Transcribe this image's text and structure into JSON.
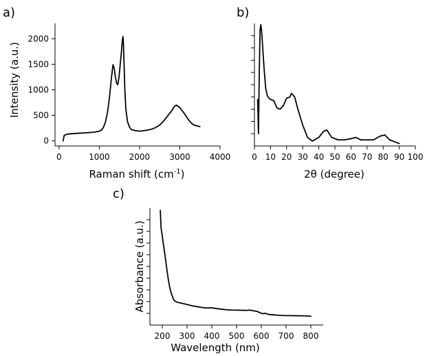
{
  "chart_data": [
    {
      "id": "a",
      "type": "line",
      "panel_label": "a)",
      "xlabel": "Raman shift (cm",
      "xlabel_sup": "-1",
      "xlabel_suffix": ")",
      "ylabel": "Intensity (a.u.)",
      "xlim": [
        -100,
        4000
      ],
      "ylim": [
        -100,
        2300
      ],
      "xticks": [
        0,
        1000,
        2000,
        3000,
        4000
      ],
      "yticks": [
        0,
        500,
        1000,
        1500,
        2000
      ],
      "ytick_labels": true,
      "grid": false,
      "series": [
        {
          "x": [
            100,
            130,
            200,
            300,
            400,
            500,
            600,
            700,
            800,
            900,
            1000,
            1050,
            1100,
            1150,
            1200,
            1250,
            1300,
            1340,
            1370,
            1400,
            1430,
            1460,
            1490,
            1520,
            1550,
            1575,
            1590,
            1600,
            1615,
            1635,
            1660,
            1700,
            1750,
            1800,
            1900,
            2000,
            2100,
            2200,
            2300,
            2400,
            2500,
            2600,
            2700,
            2800,
            2870,
            2920,
            3000,
            3100,
            3200,
            3250,
            3300,
            3350,
            3400,
            3450,
            3500
          ],
          "y": [
            0,
            110,
            130,
            140,
            145,
            150,
            155,
            160,
            165,
            175,
            190,
            210,
            260,
            360,
            540,
            830,
            1220,
            1490,
            1420,
            1250,
            1130,
            1100,
            1250,
            1500,
            1750,
            1980,
            2040,
            1900,
            1500,
            1000,
            620,
            380,
            270,
            220,
            200,
            190,
            200,
            210,
            230,
            260,
            310,
            390,
            490,
            590,
            680,
            700,
            650,
            550,
            430,
            380,
            340,
            310,
            300,
            290,
            280
          ]
        }
      ]
    },
    {
      "id": "b",
      "type": "line",
      "panel_label": "b)",
      "xlabel": "2θ (degree)",
      "ylabel": "",
      "xlim": [
        0,
        100
      ],
      "ylim": [
        0,
        1
      ],
      "xticks": [
        0,
        10,
        20,
        30,
        40,
        50,
        60,
        70,
        80,
        90,
        100
      ],
      "yticks": [
        0.1,
        0.2,
        0.3,
        0.4,
        0.5,
        0.6,
        0.7,
        0.8,
        0.9
      ],
      "ytick_labels": false,
      "grid": false,
      "series": [
        {
          "x": [
            2.0,
            2.5,
            3.0,
            3.5,
            4.0,
            4.5,
            5.0,
            6.0,
            7.0,
            8.0,
            9.0,
            10.0,
            12.0,
            14.0,
            16.0,
            18.0,
            20.0,
            22.0,
            23.0,
            25.0,
            27.0,
            30.0,
            33.0,
            36.0,
            40.0,
            43.0,
            45.0,
            48.0,
            52.0,
            56.0,
            60.0,
            63.0,
            66.0,
            70.0,
            74.0,
            78.0,
            81.0,
            84.0,
            88.0,
            90.0
          ],
          "y": [
            0.38,
            0.1,
            0.6,
            0.95,
            0.99,
            0.93,
            0.83,
            0.63,
            0.47,
            0.41,
            0.39,
            0.38,
            0.37,
            0.31,
            0.3,
            0.33,
            0.39,
            0.4,
            0.43,
            0.4,
            0.3,
            0.17,
            0.07,
            0.04,
            0.07,
            0.12,
            0.13,
            0.07,
            0.05,
            0.05,
            0.06,
            0.07,
            0.05,
            0.05,
            0.05,
            0.08,
            0.09,
            0.05,
            0.03,
            0.02
          ]
        }
      ]
    },
    {
      "id": "c",
      "type": "line",
      "panel_label": "c)",
      "xlabel": "Wavelength (nm)",
      "ylabel": "Absorbance (a.u.)",
      "xlim": [
        150,
        850
      ],
      "ylim": [
        0,
        1
      ],
      "xticks": [
        200,
        300,
        400,
        500,
        600,
        700,
        800
      ],
      "yticks": [
        0.1,
        0.2,
        0.3,
        0.4,
        0.5,
        0.6,
        0.7,
        0.8,
        0.9
      ],
      "ytick_labels": false,
      "grid": false,
      "series": [
        {
          "x": [
            192,
            195,
            200,
            205,
            210,
            215,
            220,
            225,
            230,
            235,
            240,
            245,
            250,
            260,
            270,
            280,
            290,
            300,
            320,
            340,
            360,
            380,
            400,
            420,
            440,
            460,
            480,
            500,
            520,
            540,
            555,
            565,
            575,
            585,
            595,
            605,
            615,
            630,
            650,
            670,
            700,
            720,
            750,
            780,
            800
          ],
          "y": [
            0.98,
            0.83,
            0.76,
            0.68,
            0.61,
            0.53,
            0.45,
            0.38,
            0.32,
            0.28,
            0.25,
            0.22,
            0.205,
            0.195,
            0.19,
            0.185,
            0.18,
            0.175,
            0.165,
            0.157,
            0.15,
            0.145,
            0.147,
            0.14,
            0.135,
            0.13,
            0.128,
            0.127,
            0.126,
            0.125,
            0.128,
            0.122,
            0.12,
            0.115,
            0.104,
            0.097,
            0.1,
            0.09,
            0.087,
            0.083,
            0.08,
            0.08,
            0.079,
            0.078,
            0.075
          ]
        }
      ]
    }
  ]
}
